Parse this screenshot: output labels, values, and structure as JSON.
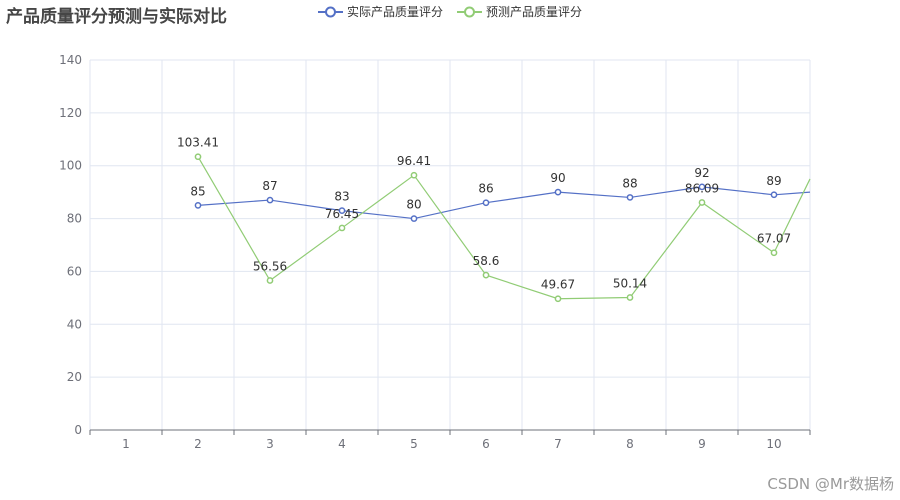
{
  "chart_data": {
    "type": "line",
    "title": "产品质量评分预测与实际对比",
    "categories": [
      "1",
      "2",
      "3",
      "4",
      "5",
      "6",
      "7",
      "8",
      "9",
      "10"
    ],
    "ylim": [
      0,
      140
    ],
    "yticks": [
      0,
      20,
      40,
      60,
      80,
      100,
      120,
      140
    ],
    "grid": true,
    "legend_position": "top",
    "series": [
      {
        "name": "实际产品质量评分",
        "color": "#5470c6",
        "points": [
          {
            "x": 2,
            "y": 85
          },
          {
            "x": 3,
            "y": 87
          },
          {
            "x": 4,
            "y": 83
          },
          {
            "x": 5,
            "y": 80
          },
          {
            "x": 6,
            "y": 86
          },
          {
            "x": 7,
            "y": 90
          },
          {
            "x": 8,
            "y": 88
          },
          {
            "x": 9,
            "y": 92
          },
          {
            "x": 10,
            "y": 89
          },
          {
            "x": 10.5,
            "y": 90
          }
        ],
        "labels": [
          "85",
          "87",
          "83",
          "80",
          "86",
          "90",
          "88",
          "92",
          "89"
        ]
      },
      {
        "name": "预测产品质量评分",
        "color": "#91cc75",
        "points": [
          {
            "x": 2,
            "y": 103.41
          },
          {
            "x": 3,
            "y": 56.56
          },
          {
            "x": 4,
            "y": 76.45
          },
          {
            "x": 5,
            "y": 96.41
          },
          {
            "x": 6,
            "y": 58.6
          },
          {
            "x": 7,
            "y": 49.67
          },
          {
            "x": 8,
            "y": 50.14
          },
          {
            "x": 9,
            "y": 86.09
          },
          {
            "x": 10,
            "y": 67.07
          },
          {
            "x": 10.5,
            "y": 95
          }
        ],
        "labels": [
          "103.41",
          "56.56",
          "76.45",
          "96.41",
          "58.6",
          "49.67",
          "50.14",
          "86.09",
          "67.07"
        ]
      }
    ]
  },
  "watermark": "CSDN @Mr数据杨"
}
